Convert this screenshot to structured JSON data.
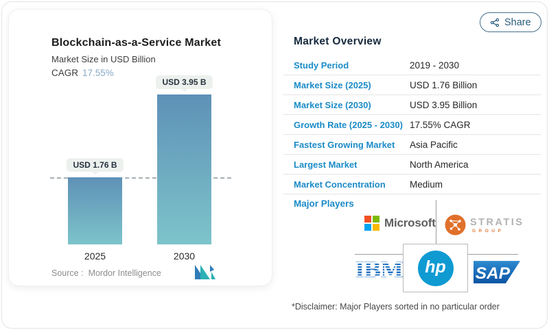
{
  "share": {
    "label": "Share"
  },
  "chart_card": {
    "title": "Blockchain-as-a-Service Market",
    "subtitle": "Market Size in USD Billion",
    "cagr_label": "CAGR",
    "cagr_value": "17.55%",
    "source_label": "Source :",
    "source_value": "Mordor Intelligence"
  },
  "chart_data": {
    "type": "bar",
    "title": "Blockchain-as-a-Service Market",
    "subtitle": "Market Size in USD Billion",
    "unit": "USD Billion",
    "categories": [
      "2025",
      "2030"
    ],
    "values": [
      1.76,
      3.95
    ],
    "bar_labels": [
      "USD 1.76 B",
      "USD 3.95 B"
    ],
    "cagr_percent": 17.55,
    "baseline_dashed_at": 1.76,
    "ylim": [
      0,
      4.4
    ],
    "grid": false,
    "bar_gradient": [
      "#5e91b7",
      "#7dc4ca"
    ]
  },
  "overview": {
    "heading": "Market Overview",
    "rows": [
      {
        "label": "Study Period",
        "value": "2019 - 2030"
      },
      {
        "label": "Market Size (2025)",
        "value": "USD 1.76 Billion"
      },
      {
        "label": "Market Size (2030)",
        "value": "USD 3.95 Billion"
      },
      {
        "label": "Growth Rate (2025 - 2030)",
        "value": "17.55% CAGR"
      },
      {
        "label": "Fastest Growing Market",
        "value": "Asia Pacific"
      },
      {
        "label": "Largest Market",
        "value": "North America"
      },
      {
        "label": "Market Concentration",
        "value": "Medium"
      }
    ],
    "major_players_label": "Major Players",
    "players": {
      "microsoft": "Microsoft",
      "stratis": "STRATIS",
      "stratis_sub": "GROUP",
      "ibm": "IBM",
      "hp": "hp",
      "sap": "SAP"
    },
    "disclaimer": "*Disclaimer: Major Players sorted in no particular order"
  },
  "colors": {
    "label_blue": "#1b8bc7",
    "heading_navy": "#15293e",
    "cagr_value_blue": "#87aac8"
  }
}
